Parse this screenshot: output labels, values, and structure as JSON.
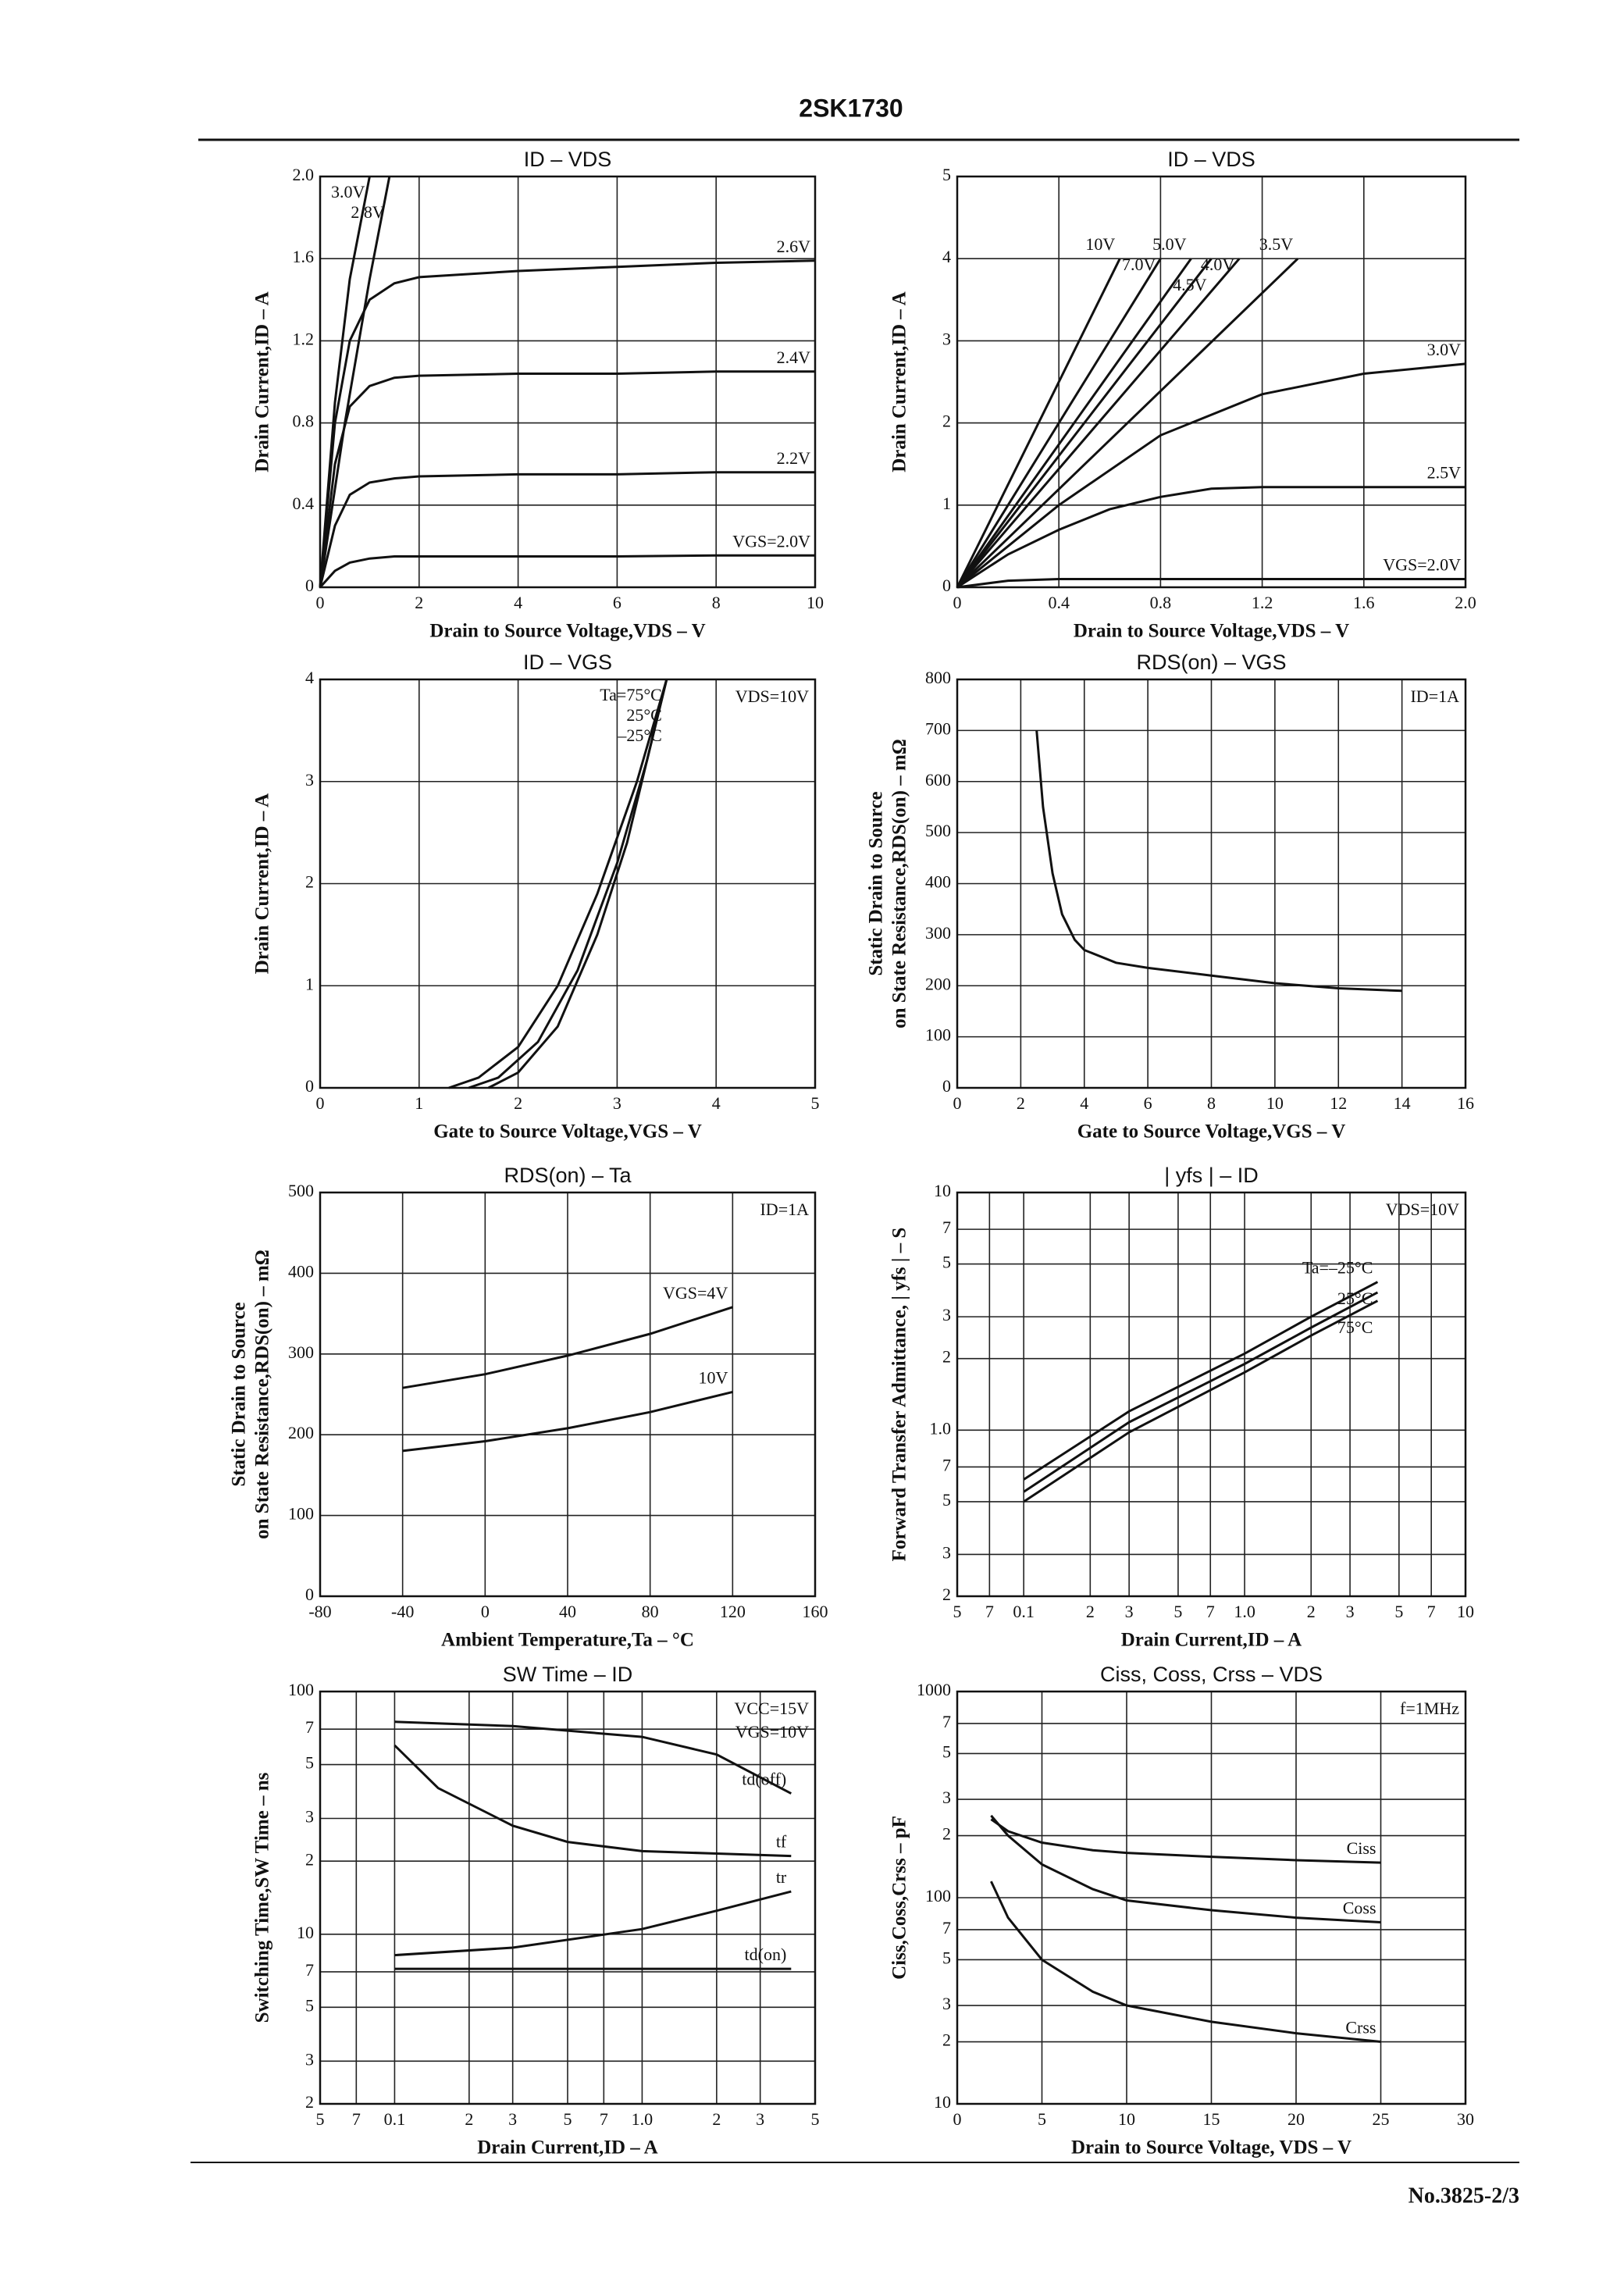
{
  "header": {
    "title": "2SK1730"
  },
  "footer": {
    "page": "No.3825-2/3"
  },
  "chart_data": [
    {
      "type": "line",
      "title": "ID – VDS",
      "xlabel": "Drain to Source Voltage,VDS – V",
      "ylabel": "Drain Current,ID – A",
      "color": "#111",
      "grid": true,
      "xlim": [
        0,
        10
      ],
      "xticks": [
        0,
        2,
        4,
        6,
        8,
        10
      ],
      "ylim": [
        0,
        2
      ],
      "yticks": [
        0,
        0.4,
        0.8,
        1.2,
        1.6,
        {
          "value": 2,
          "label": "2.0"
        }
      ],
      "series": [
        {
          "name": "3.0V",
          "x": [
            0,
            0.3,
            0.6,
            1.0
          ],
          "values": [
            0,
            0.9,
            1.5,
            2.0
          ]
        },
        {
          "name": "2.8V",
          "x": [
            0,
            0.5,
            1.0,
            1.4
          ],
          "values": [
            0,
            0.8,
            1.5,
            2.0
          ]
        },
        {
          "name": "2.6V",
          "x": [
            0,
            0.3,
            0.6,
            1,
            1.5,
            2,
            4,
            6,
            8,
            10
          ],
          "values": [
            0,
            0.8,
            1.2,
            1.4,
            1.48,
            1.51,
            1.54,
            1.56,
            1.58,
            1.59
          ]
        },
        {
          "name": "2.4V",
          "x": [
            0,
            0.3,
            0.6,
            1,
            1.5,
            2,
            4,
            6,
            8,
            10
          ],
          "values": [
            0,
            0.6,
            0.88,
            0.98,
            1.02,
            1.03,
            1.04,
            1.04,
            1.05,
            1.05
          ]
        },
        {
          "name": "2.2V",
          "x": [
            0,
            0.3,
            0.6,
            1,
            1.5,
            2,
            4,
            6,
            8,
            10
          ],
          "values": [
            0,
            0.3,
            0.45,
            0.51,
            0.53,
            0.54,
            0.55,
            0.55,
            0.56,
            0.56
          ]
        },
        {
          "name": "VGS=2.0V",
          "x": [
            0,
            0.3,
            0.6,
            1,
            1.5,
            2,
            4,
            6,
            8,
            10
          ],
          "values": [
            0,
            0.08,
            0.12,
            0.14,
            0.15,
            0.15,
            0.15,
            0.15,
            0.155,
            0.155
          ]
        }
      ]
    },
    {
      "type": "line",
      "title": "ID – VDS",
      "xlabel": "Drain to Source Voltage,VDS – V",
      "ylabel": "Drain Current,ID – A",
      "color": "#111",
      "grid": true,
      "xlim": [
        0,
        2
      ],
      "xticks": [
        0,
        0.4,
        0.8,
        1.2,
        1.6,
        {
          "value": 2,
          "label": "2.0"
        }
      ],
      "ylim": [
        0,
        5
      ],
      "yticks": [
        0,
        1,
        2,
        3,
        4,
        5
      ],
      "series": [
        {
          "name": "10V",
          "x": [
            0,
            0.64
          ],
          "values": [
            0,
            4
          ]
        },
        {
          "name": "7.0V",
          "x": [
            0,
            0.8
          ],
          "values": [
            0,
            4
          ]
        },
        {
          "name": "5.0V",
          "x": [
            0,
            0.92
          ],
          "values": [
            0,
            4
          ]
        },
        {
          "name": "4.5V",
          "x": [
            0,
            1.0
          ],
          "values": [
            0,
            4
          ]
        },
        {
          "name": "4.0V",
          "x": [
            0,
            1.11
          ],
          "values": [
            0,
            4
          ]
        },
        {
          "name": "3.5V",
          "x": [
            0,
            1.34
          ],
          "values": [
            0,
            4
          ]
        },
        {
          "name": "3.0V",
          "x": [
            0,
            0.4,
            0.8,
            1.2,
            1.6,
            2.0
          ],
          "values": [
            0,
            1.0,
            1.85,
            2.35,
            2.6,
            2.72
          ]
        },
        {
          "name": "2.5V",
          "x": [
            0,
            0.2,
            0.4,
            0.6,
            0.8,
            1.0,
            1.2,
            1.6,
            2.0
          ],
          "values": [
            0,
            0.4,
            0.7,
            0.95,
            1.1,
            1.2,
            1.22,
            1.22,
            1.22
          ]
        },
        {
          "name": "VGS=2.0V",
          "x": [
            0,
            0.2,
            0.4,
            1,
            2
          ],
          "values": [
            0,
            0.08,
            0.1,
            0.1,
            0.1
          ]
        }
      ]
    },
    {
      "type": "line",
      "title": "ID – VGS",
      "xlabel": "Gate to Source Voltage,VGS – V",
      "ylabel": "Drain Current,ID – A",
      "color": "#111",
      "grid": true,
      "annotations": [
        "VDS=10V"
      ],
      "xlim": [
        0,
        5
      ],
      "xticks": [
        0,
        1,
        2,
        3,
        4,
        5
      ],
      "ylim": [
        0,
        4
      ],
      "yticks": [
        0,
        1,
        2,
        3,
        4
      ],
      "series": [
        {
          "name": "Ta=75°C",
          "x": [
            1.3,
            1.6,
            2.0,
            2.4,
            2.8,
            3.2,
            3.5
          ],
          "values": [
            0,
            0.1,
            0.4,
            1.0,
            1.9,
            3.0,
            4.0
          ]
        },
        {
          "name": "25°C",
          "x": [
            1.5,
            1.8,
            2.2,
            2.6,
            3.0,
            3.3,
            3.5
          ],
          "values": [
            0,
            0.1,
            0.45,
            1.15,
            2.2,
            3.2,
            4.0
          ]
        },
        {
          "name": "–25°C",
          "x": [
            1.7,
            2.0,
            2.4,
            2.8,
            3.1,
            3.5
          ],
          "values": [
            0,
            0.15,
            0.6,
            1.5,
            2.4,
            4.0
          ]
        }
      ]
    },
    {
      "type": "line",
      "title": "RDS(on) – VGS",
      "xlabel": "Gate to Source Voltage,VGS – V",
      "ylabel": [
        "Static Drain to Source",
        "on State Resistance,RDS(on) – mΩ"
      ],
      "color": "#111",
      "grid": true,
      "annotations": [
        "ID=1A"
      ],
      "xlim": [
        0,
        16
      ],
      "xticks": [
        0,
        2,
        4,
        6,
        8,
        10,
        12,
        14,
        16
      ],
      "ylim": [
        0,
        800
      ],
      "yticks": [
        0,
        100,
        200,
        300,
        400,
        500,
        600,
        700,
        800
      ],
      "series": [
        {
          "x": [
            2.5,
            2.7,
            3,
            3.3,
            3.7,
            4,
            5,
            6,
            8,
            10,
            12,
            14
          ],
          "values": [
            700,
            550,
            420,
            340,
            290,
            270,
            245,
            235,
            220,
            205,
            195,
            190
          ]
        }
      ]
    },
    {
      "type": "line",
      "title": "RDS(on) – Ta",
      "xlabel": "Ambient Temperature,Ta – °C",
      "ylabel": [
        "Static Drain to Source",
        "on State Resistance,RDS(on) – mΩ"
      ],
      "color": "#111",
      "grid": true,
      "annotations": [
        "ID=1A"
      ],
      "xlim": [
        -80,
        160
      ],
      "xticks": [
        -80,
        -40,
        0,
        40,
        80,
        120,
        160
      ],
      "ylim": [
        0,
        500
      ],
      "yticks": [
        0,
        100,
        200,
        300,
        400,
        500
      ],
      "series": [
        {
          "name": "VGS=4V",
          "x": [
            -40,
            0,
            40,
            80,
            120
          ],
          "values": [
            258,
            275,
            298,
            325,
            358
          ]
        },
        {
          "name": "10V",
          "x": [
            -40,
            0,
            40,
            80,
            120
          ],
          "values": [
            180,
            192,
            208,
            228,
            253
          ]
        }
      ]
    },
    {
      "type": "line",
      "title": "| yfs | – ID",
      "xlabel": "Drain Current,ID – A",
      "ylabel": "Forward Transfer Admittance, | yfs | – S",
      "color": "#111",
      "grid": true,
      "xlog": true,
      "ylog": true,
      "annotations": [
        "VDS=10V"
      ],
      "xlim": [
        0.05,
        10
      ],
      "xticks": [
        {
          "value": 0.05,
          "label": "5"
        },
        {
          "value": 0.07,
          "label": "7"
        },
        0.1,
        {
          "value": 0.2,
          "label": "2"
        },
        {
          "value": 0.3,
          "label": "3"
        },
        {
          "value": 0.5,
          "label": "5"
        },
        {
          "value": 0.7,
          "label": "7"
        },
        {
          "value": 1,
          "label": "1.0"
        },
        2,
        3,
        5,
        7,
        10
      ],
      "ylim": [
        0.2,
        10
      ],
      "yticks": [
        {
          "value": 0.2,
          "label": "2"
        },
        {
          "value": 0.3,
          "label": "3"
        },
        {
          "value": 0.5,
          "label": "5"
        },
        {
          "value": 0.7,
          "label": "7"
        },
        {
          "value": 1,
          "label": "1.0"
        },
        2,
        3,
        5,
        7,
        10
      ],
      "series": [
        {
          "name": "Ta=–25°C",
          "x": [
            0.1,
            0.3,
            1,
            2,
            4
          ],
          "values": [
            0.62,
            1.2,
            2.1,
            3.0,
            4.2
          ]
        },
        {
          "name": "25°C",
          "x": [
            0.1,
            0.3,
            1,
            2,
            4
          ],
          "values": [
            0.55,
            1.08,
            1.9,
            2.7,
            3.8
          ]
        },
        {
          "name": "75°C",
          "x": [
            0.1,
            0.3,
            1,
            2,
            4
          ],
          "values": [
            0.5,
            0.98,
            1.75,
            2.5,
            3.5
          ]
        }
      ]
    },
    {
      "type": "line",
      "title": "SW Time – ID",
      "xlabel": "Drain Current,ID – A",
      "ylabel": "Switching Time,SW Time – ns",
      "color": "#111",
      "grid": true,
      "xlog": true,
      "ylog": true,
      "annotations": [
        "VCC=15V",
        "VGS=10V"
      ],
      "xlim": [
        0.05,
        5
      ],
      "xticks": [
        {
          "value": 0.05,
          "label": "5"
        },
        {
          "value": 0.07,
          "label": "7"
        },
        0.1,
        {
          "value": 0.2,
          "label": "2"
        },
        {
          "value": 0.3,
          "label": "3"
        },
        {
          "value": 0.5,
          "label": "5"
        },
        {
          "value": 0.7,
          "label": "7"
        },
        {
          "value": 1,
          "label": "1.0"
        },
        2,
        3,
        5
      ],
      "ylim": [
        2,
        100
      ],
      "yticks": [
        2,
        3,
        5,
        7,
        10,
        {
          "value": 20,
          "label": "2"
        },
        {
          "value": 30,
          "label": "3"
        },
        {
          "value": 50,
          "label": "5"
        },
        {
          "value": 70,
          "label": "7"
        },
        100
      ],
      "series": [
        {
          "name": "td(off)",
          "x": [
            0.1,
            0.3,
            1,
            2,
            4
          ],
          "values": [
            75,
            72,
            65,
            55,
            38
          ]
        },
        {
          "name": "tf",
          "x": [
            0.1,
            0.15,
            0.3,
            0.5,
            1,
            2,
            4
          ],
          "values": [
            60,
            40,
            28,
            24,
            22,
            21.5,
            21
          ]
        },
        {
          "name": "tr",
          "x": [
            0.1,
            0.3,
            1,
            2,
            4
          ],
          "values": [
            8.2,
            8.8,
            10.5,
            12.5,
            15
          ]
        },
        {
          "name": "td(on)",
          "x": [
            0.1,
            4
          ],
          "values": [
            7.2,
            7.2
          ]
        }
      ]
    },
    {
      "type": "line",
      "title": "Ciss, Coss, Crss – VDS",
      "xlabel": "Drain to Source Voltage, VDS – V",
      "ylabel": "Ciss,Coss,Crss – pF",
      "color": "#111",
      "grid": true,
      "ylog": true,
      "annotations": [
        "f=1MHz"
      ],
      "xlim": [
        0,
        30
      ],
      "xticks": [
        0,
        5,
        10,
        15,
        20,
        25,
        30
      ],
      "ylim": [
        10,
        1000
      ],
      "yticks": [
        10,
        {
          "value": 20,
          "label": "2"
        },
        {
          "value": 30,
          "label": "3"
        },
        {
          "value": 50,
          "label": "5"
        },
        {
          "value": 70,
          "label": "7"
        },
        100,
        {
          "value": 200,
          "label": "2"
        },
        {
          "value": 300,
          "label": "3"
        },
        {
          "value": 500,
          "label": "5"
        },
        {
          "value": 700,
          "label": "7"
        },
        1000
      ],
      "series": [
        {
          "name": "Ciss",
          "x": [
            2,
            3,
            5,
            8,
            10,
            15,
            20,
            25
          ],
          "values": [
            240,
            210,
            185,
            170,
            165,
            158,
            152,
            148
          ]
        },
        {
          "name": "Coss",
          "x": [
            2,
            3,
            5,
            8,
            10,
            15,
            20,
            25
          ],
          "values": [
            250,
            200,
            145,
            110,
            97,
            87,
            80,
            76
          ]
        },
        {
          "name": "Crss",
          "x": [
            2,
            3,
            5,
            8,
            10,
            15,
            20,
            25
          ],
          "values": [
            120,
            80,
            50,
            35,
            30,
            25,
            22,
            20
          ]
        }
      ]
    }
  ]
}
